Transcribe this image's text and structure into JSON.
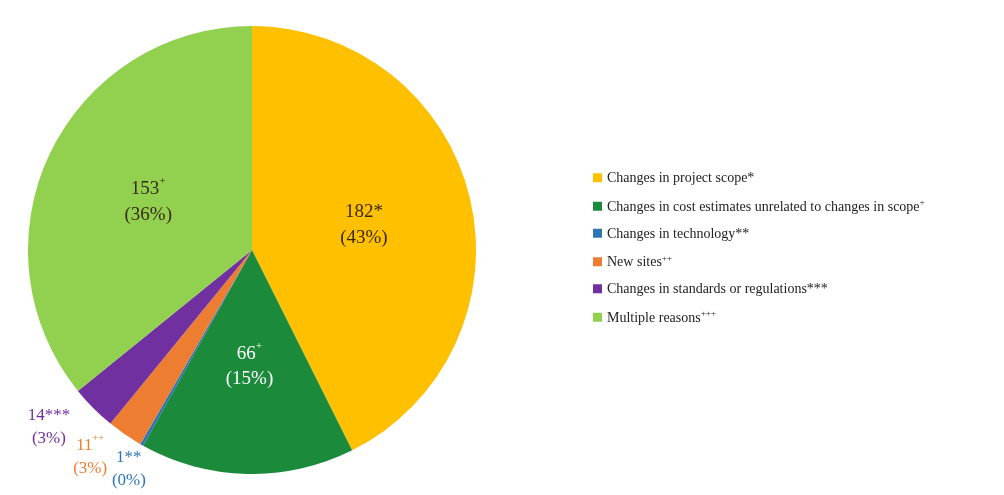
{
  "chart_data": {
    "type": "pie",
    "categories": [
      "Changes in project scope*",
      "Changes in cost estimates unrelated to changes in scope$^{+}$",
      "Changes in technology**",
      "New sites$^{++}$",
      "Changes in standards or regulations***",
      "Multiple reasons$^{+++}$"
    ],
    "values": [
      182,
      66,
      1,
      11,
      14,
      153
    ],
    "colors": [
      "#ffc000",
      "#1b8a3a",
      "#2e75b6",
      "#ed7d31",
      "#7030a0",
      "#92d050"
    ],
    "value_labels": [
      "182*\n(43%)",
      "66$^{+}$\n(15%)",
      "1**\n(0%)",
      "11$^{++}$\n(3%)",
      "14***\n(3%)",
      "153$^{+}$\n(36%)"
    ],
    "legend": "right"
  }
}
